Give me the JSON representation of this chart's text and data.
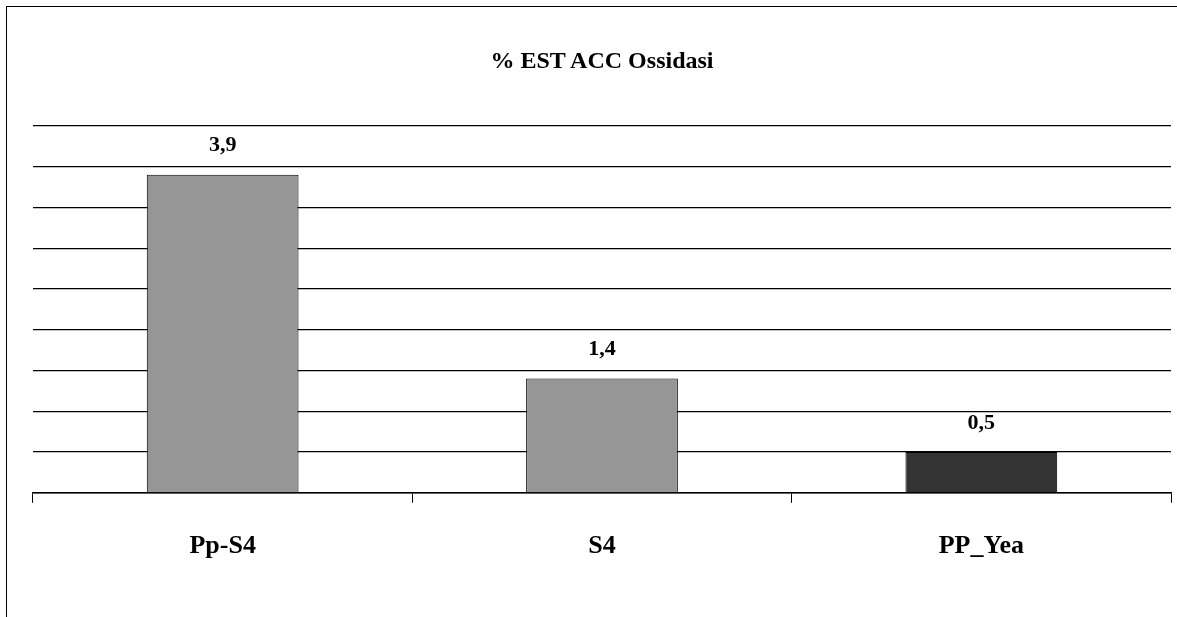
{
  "chart_data": {
    "type": "bar",
    "title": "% EST ACC Ossidasi",
    "categories": [
      "Pp-S4",
      "S4",
      "PP_Yea"
    ],
    "values": [
      3.9,
      1.4,
      0.5
    ],
    "colors": [
      "#969696",
      "#969696",
      "#333333"
    ],
    "value_labels": [
      "3,9",
      "1,4",
      "0,5"
    ],
    "tick_labels": "x",
    "grid": "y",
    "legend": false
  }
}
